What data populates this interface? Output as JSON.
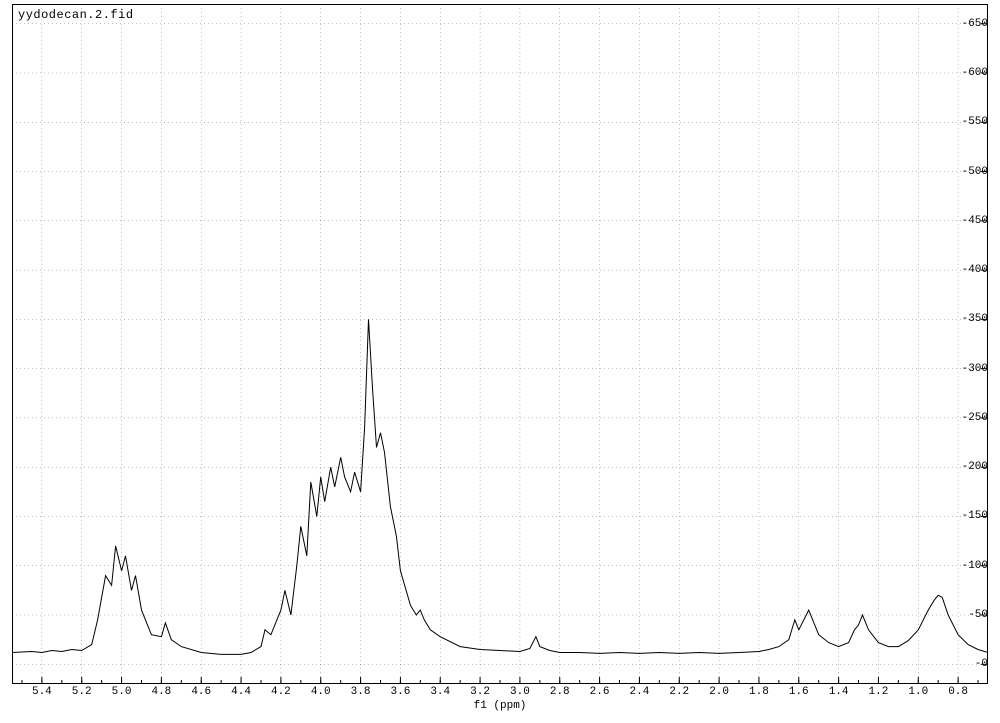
{
  "chart": {
    "type": "line",
    "title": "yydodecan.2.fid",
    "xaxis_label": "f1 (ppm)",
    "background_color": "#ffffff",
    "grid_color": "#000000",
    "grid_dash": "1 3",
    "line_color": "#000000",
    "line_width": 1,
    "font_family": "Courier New",
    "title_fontsize": 12,
    "tick_fontsize": 11,
    "xlim": [
      5.55,
      0.65
    ],
    "ylim": [
      -20,
      670
    ],
    "xticks": [
      5.4,
      5.2,
      5.0,
      4.8,
      4.6,
      4.4,
      4.2,
      4.0,
      3.8,
      3.6,
      3.4,
      3.2,
      3.0,
      2.8,
      2.6,
      2.4,
      2.2,
      2.0,
      1.8,
      1.6,
      1.4,
      1.2,
      1.0,
      0.8
    ],
    "xtick_minor_step": 0.1,
    "yticks": [
      0,
      50,
      100,
      150,
      200,
      250,
      300,
      350,
      400,
      450,
      500,
      550,
      600,
      650
    ],
    "series": {
      "x": [
        5.55,
        5.45,
        5.4,
        5.35,
        5.3,
        5.25,
        5.2,
        5.15,
        5.12,
        5.08,
        5.05,
        5.03,
        5.0,
        4.98,
        4.95,
        4.93,
        4.9,
        4.85,
        4.8,
        4.78,
        4.75,
        4.7,
        4.6,
        4.5,
        4.4,
        4.35,
        4.3,
        4.28,
        4.25,
        4.2,
        4.18,
        4.15,
        4.12,
        4.1,
        4.07,
        4.05,
        4.02,
        4.0,
        3.98,
        3.95,
        3.93,
        3.9,
        3.88,
        3.85,
        3.83,
        3.8,
        3.78,
        3.76,
        3.74,
        3.72,
        3.7,
        3.68,
        3.65,
        3.62,
        3.6,
        3.55,
        3.52,
        3.5,
        3.48,
        3.45,
        3.4,
        3.3,
        3.2,
        3.1,
        3.0,
        2.95,
        2.92,
        2.9,
        2.85,
        2.8,
        2.7,
        2.6,
        2.5,
        2.4,
        2.3,
        2.2,
        2.1,
        2.0,
        1.9,
        1.8,
        1.75,
        1.7,
        1.65,
        1.62,
        1.6,
        1.55,
        1.5,
        1.45,
        1.4,
        1.35,
        1.32,
        1.3,
        1.28,
        1.25,
        1.2,
        1.15,
        1.1,
        1.05,
        1.0,
        0.95,
        0.92,
        0.9,
        0.88,
        0.85,
        0.8,
        0.75,
        0.7,
        0.65
      ],
      "y": [
        12,
        13,
        12,
        14,
        13,
        15,
        14,
        20,
        45,
        90,
        80,
        120,
        95,
        110,
        75,
        90,
        55,
        30,
        28,
        42,
        25,
        18,
        12,
        10,
        10,
        12,
        18,
        35,
        30,
        55,
        75,
        50,
        100,
        140,
        110,
        185,
        150,
        190,
        165,
        200,
        180,
        210,
        190,
        175,
        195,
        175,
        240,
        350,
        280,
        220,
        235,
        215,
        160,
        130,
        95,
        60,
        50,
        55,
        45,
        35,
        28,
        18,
        15,
        14,
        13,
        16,
        28,
        18,
        14,
        12,
        12,
        11,
        12,
        11,
        12,
        11,
        12,
        11,
        12,
        13,
        15,
        18,
        25,
        45,
        35,
        55,
        30,
        22,
        18,
        22,
        35,
        40,
        50,
        35,
        22,
        18,
        18,
        24,
        35,
        55,
        65,
        70,
        68,
        50,
        30,
        20,
        15,
        12
      ]
    }
  }
}
